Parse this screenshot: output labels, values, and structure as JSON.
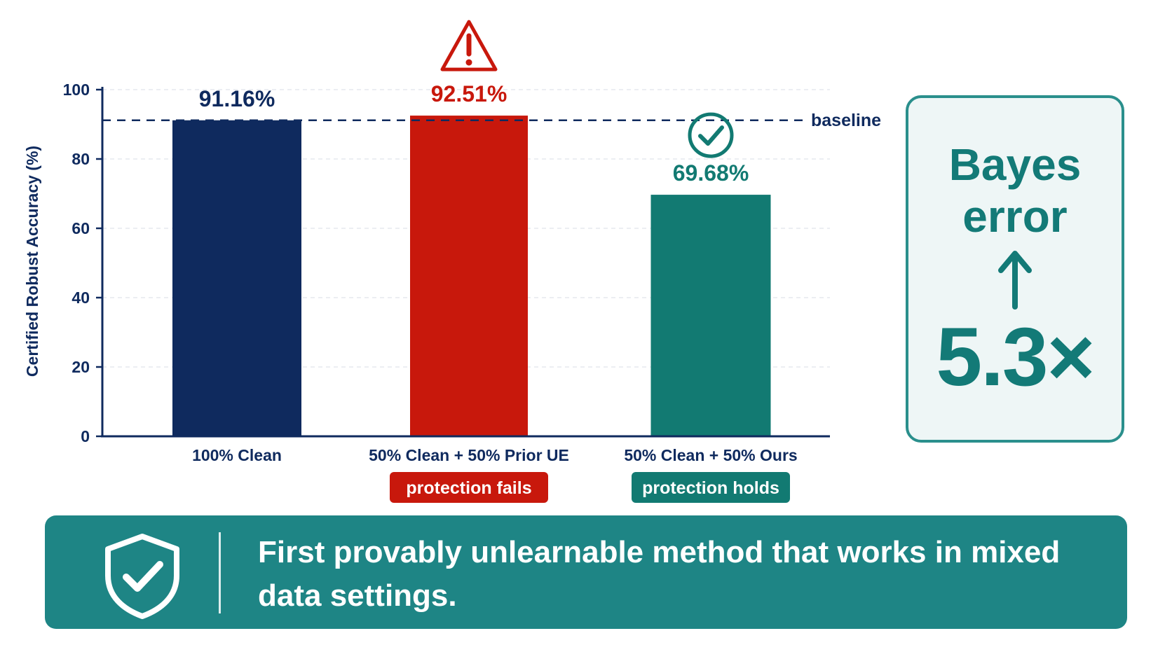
{
  "chart_data": {
    "type": "bar",
    "ylabel": "Certified Robust Accuracy (%)",
    "xlabel": "",
    "ylim": [
      0,
      100
    ],
    "yticks": [
      0,
      20,
      40,
      60,
      80,
      100
    ],
    "grid": true,
    "categories": [
      "100% Clean",
      "50% Clean + 50% Prior UE",
      "50% Clean + 50% Ours"
    ],
    "values": [
      91.16,
      92.51,
      69.68
    ],
    "value_labels": [
      "91.16%",
      "92.51%",
      "69.68%"
    ],
    "bar_colors": [
      "#0f2a5e",
      "#c8180c",
      "#127a72"
    ],
    "label_colors": [
      "#0f2a5e",
      "#c8180c",
      "#127a72"
    ],
    "marker_icons": [
      "",
      "warning-triangle-icon",
      "check-circle-icon"
    ],
    "badges": [
      "",
      "protection fails",
      "protection holds"
    ],
    "badge_colors": [
      "",
      "#c8180c",
      "#127a72"
    ],
    "reference_line": {
      "label": "baseline",
      "value": 91.16,
      "color": "#0f2a5e"
    }
  },
  "side_panel": {
    "title": "Bayes error",
    "arrow_icon": "arrow-up-icon",
    "value": "5.3×",
    "color": "#137a77"
  },
  "banner": {
    "icon": "shield-check-icon",
    "text": "First provably unlearnable method that works in mixed data settings.",
    "color": "#1e8585"
  }
}
